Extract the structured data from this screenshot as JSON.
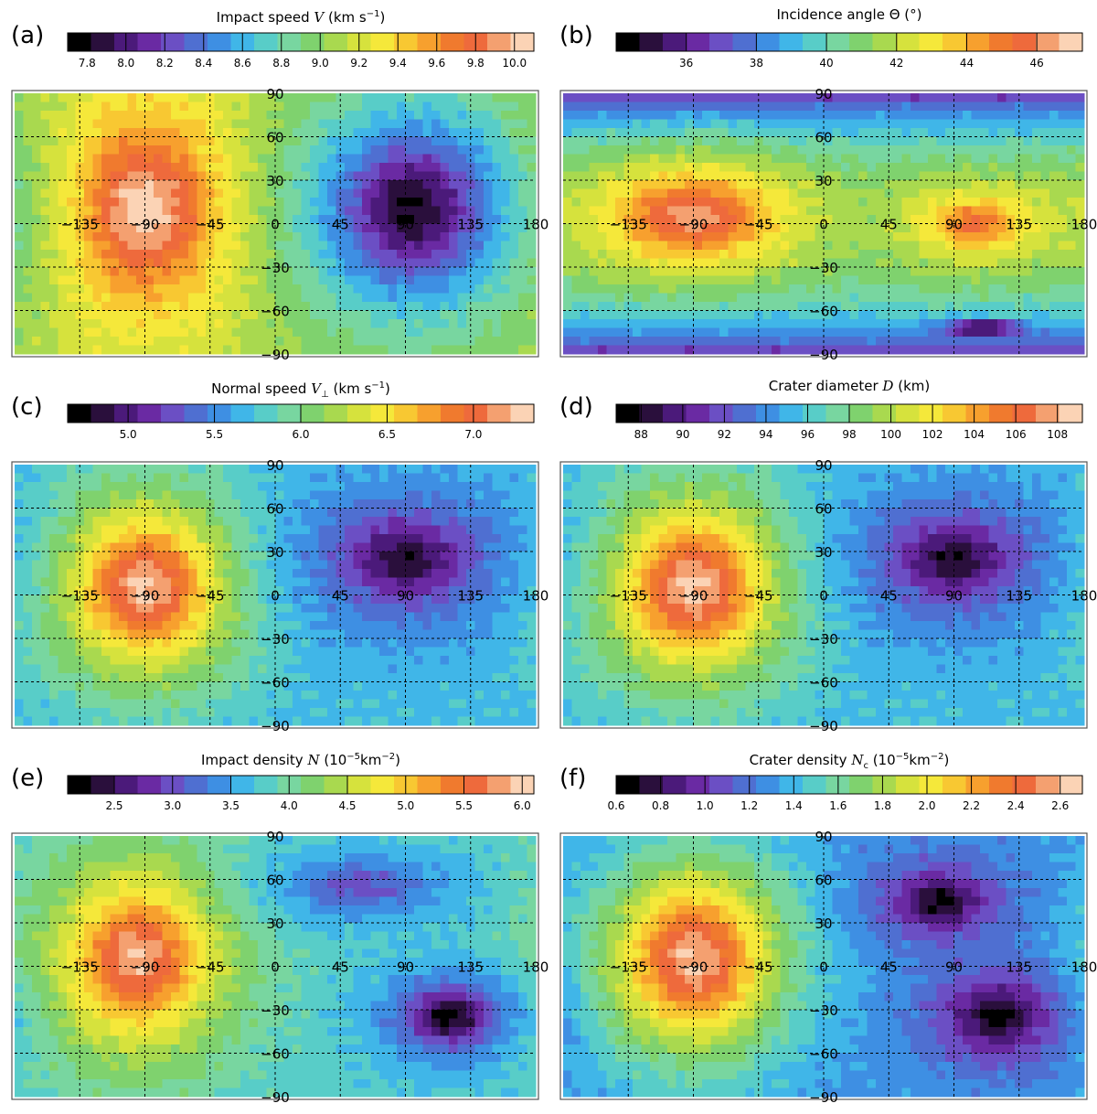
{
  "figure": {
    "panels": [
      {
        "label": "(a)",
        "cb_title_pre": "Impact speed ",
        "cb_symbol": "V",
        "cb_symbol_sub": "",
        "cb_units_pre": " (km s",
        "cb_units_sup": "−1",
        "cb_units_post": ")",
        "cb_range": [
          7.7,
          10.1
        ],
        "cb_ticks": [
          7.8,
          8.0,
          8.2,
          8.4,
          8.6,
          8.8,
          9.0,
          9.2,
          9.4,
          9.6,
          9.8,
          10.0
        ],
        "cb_tick_labels": [
          "7.8",
          "8.0",
          "8.2",
          "8.4",
          "8.6",
          "8.8",
          "9.0",
          "9.2",
          "9.4",
          "9.6",
          "9.8",
          "10.0"
        ]
      },
      {
        "label": "(b)",
        "cb_title_pre": "Incidence angle ",
        "cb_symbol": "Θ",
        "cb_symbol_sub": "",
        "cb_units_pre": " (°)",
        "cb_units_sup": "",
        "cb_units_post": "",
        "cb_range": [
          34.0,
          47.3
        ],
        "cb_ticks": [
          36,
          38,
          40,
          42,
          44,
          46
        ],
        "cb_tick_labels": [
          "36",
          "38",
          "40",
          "42",
          "44",
          "46"
        ]
      },
      {
        "label": "(c)",
        "cb_title_pre": "Normal speed ",
        "cb_symbol": "V",
        "cb_symbol_sub": "⊥",
        "cb_units_pre": " (km s",
        "cb_units_sup": "−1",
        "cb_units_post": ")",
        "cb_range": [
          4.65,
          7.35
        ],
        "cb_ticks": [
          5.0,
          5.5,
          6.0,
          6.5,
          7.0
        ],
        "cb_tick_labels": [
          "5.0",
          "5.5",
          "6.0",
          "6.5",
          "7.0"
        ]
      },
      {
        "label": "(d)",
        "cb_title_pre": "Crater diameter ",
        "cb_symbol": "D",
        "cb_symbol_sub": "",
        "cb_units_pre": " (km)",
        "cb_units_sup": "",
        "cb_units_post": "",
        "cb_range": [
          86.8,
          109.2
        ],
        "cb_ticks": [
          88,
          90,
          92,
          94,
          96,
          98,
          100,
          102,
          104,
          106,
          108
        ],
        "cb_tick_labels": [
          "88",
          "90",
          "92",
          "94",
          "96",
          "98",
          "100",
          "102",
          "104",
          "106",
          "108"
        ]
      },
      {
        "label": "(e)",
        "cb_title_pre": "Impact density ",
        "cb_symbol": "N",
        "cb_symbol_sub": "",
        "cb_units_pre": " (10",
        "cb_units_sup": "−5",
        "cb_units_post": "km",
        "cb_units_sup2": "−2",
        "cb_units_close": ")",
        "cb_range": [
          2.1,
          6.1
        ],
        "cb_ticks": [
          2.5,
          3.0,
          3.5,
          4.0,
          4.5,
          5.0,
          5.5,
          6.0
        ],
        "cb_tick_labels": [
          "2.5",
          "3.0",
          "3.5",
          "4.0",
          "4.5",
          "5.0",
          "5.5",
          "6.0"
        ]
      },
      {
        "label": "(f)",
        "cb_title_pre": "Crater density ",
        "cb_symbol": "N",
        "cb_symbol_sub": "c",
        "cb_units_pre": " (10",
        "cb_units_sup": "−5",
        "cb_units_post": "km",
        "cb_units_sup2": "−2",
        "cb_units_close": ")",
        "cb_range": [
          0.6,
          2.7
        ],
        "cb_ticks": [
          0.6,
          0.8,
          1.0,
          1.2,
          1.4,
          1.6,
          1.8,
          2.0,
          2.2,
          2.4,
          2.6
        ],
        "cb_tick_labels": [
          "0.6",
          "0.8",
          "1.0",
          "1.2",
          "1.4",
          "1.6",
          "1.8",
          "2.0",
          "2.2",
          "2.4",
          "2.6"
        ]
      }
    ],
    "lon_labels": [
      "−135",
      "−90",
      "−45",
      "0",
      "45",
      "90",
      "135",
      "180"
    ],
    "lat_labels": [
      "90",
      "60",
      "30",
      "−30",
      "−60",
      "−90"
    ],
    "colormap": [
      "#000000",
      "#2a0f3c",
      "#4b1a7a",
      "#6a2aa3",
      "#6b4fc4",
      "#4f6fd1",
      "#3e8fe3",
      "#40b6e8",
      "#58cdc8",
      "#78d6a0",
      "#7fd26e",
      "#a9d94f",
      "#d6e23d",
      "#f5e83a",
      "#f8c832",
      "#f7a02e",
      "#f07a2e",
      "#ee6a3c",
      "#f4a070",
      "#fbd3b5"
    ]
  },
  "chart_data": [
    {
      "type": "heatmap",
      "title": "Impact speed V (km s−1)",
      "x_axis": "longitude",
      "y_axis": "latitude",
      "xlim": [
        -180,
        180
      ],
      "ylim": [
        -90,
        90
      ],
      "x_ticks": [
        -135,
        -90,
        -45,
        0,
        45,
        90,
        135,
        180
      ],
      "y_ticks": [
        90,
        60,
        30,
        -30,
        -60,
        -90
      ],
      "grid": true,
      "value_range": [
        7.7,
        10.1
      ],
      "background": 9.1,
      "features": [
        {
          "lon": -90,
          "lat": 10,
          "rx": 75,
          "ry": 90,
          "value": 9.8,
          "peak": 10.05
        },
        {
          "lon": 95,
          "lat": 10,
          "rx": 95,
          "ry": 95,
          "value": 8.2,
          "peak": 7.8
        }
      ]
    },
    {
      "type": "heatmap",
      "title": "Incidence angle Θ (°)",
      "x_axis": "longitude",
      "y_axis": "latitude",
      "xlim": [
        -180,
        180
      ],
      "ylim": [
        -90,
        90
      ],
      "x_ticks": [
        -135,
        -90,
        -45,
        0,
        45,
        90,
        135,
        180
      ],
      "y_ticks": [
        90,
        60,
        30,
        -30,
        -60,
        -90
      ],
      "grid": true,
      "value_range": [
        34.0,
        47.3
      ],
      "background": 41.0,
      "pole_value": 36.5,
      "features": [
        {
          "lon": -90,
          "lat": 5,
          "rx": 85,
          "ry": 45,
          "value": 45.0,
          "peak": 46.5
        },
        {
          "lon": 105,
          "lat": 0,
          "rx": 65,
          "ry": 35,
          "value": 43.5,
          "peak": 45.5
        },
        {
          "lon": 110,
          "lat": -72,
          "rx": 30,
          "ry": 6,
          "value": 34.5,
          "peak": 34.0
        }
      ]
    },
    {
      "type": "heatmap",
      "title": "Normal speed V⊥ (km s−1)",
      "x_axis": "longitude",
      "y_axis": "latitude",
      "xlim": [
        -180,
        180
      ],
      "ylim": [
        -90,
        90
      ],
      "x_ticks": [
        -135,
        -90,
        -45,
        0,
        45,
        90,
        135,
        180
      ],
      "y_ticks": [
        90,
        60,
        30,
        -30,
        -60,
        -90
      ],
      "grid": true,
      "value_range": [
        4.65,
        7.35
      ],
      "background": 5.7,
      "features": [
        {
          "lon": -90,
          "lat": 5,
          "rx": 80,
          "ry": 80,
          "value": 6.8,
          "peak": 7.25
        },
        {
          "lon": 90,
          "lat": 25,
          "rx": 90,
          "ry": 60,
          "value": 5.2,
          "peak": 4.8
        }
      ]
    },
    {
      "type": "heatmap",
      "title": "Crater diameter D (km)",
      "x_axis": "longitude",
      "y_axis": "latitude",
      "xlim": [
        -180,
        180
      ],
      "ylim": [
        -90,
        90
      ],
      "x_ticks": [
        -135,
        -90,
        -45,
        0,
        45,
        90,
        135,
        180
      ],
      "y_ticks": [
        90,
        60,
        30,
        -30,
        -60,
        -90
      ],
      "grid": true,
      "value_range": [
        86.8,
        109.2
      ],
      "background": 95.5,
      "features": [
        {
          "lon": -90,
          "lat": 5,
          "rx": 80,
          "ry": 80,
          "value": 105.0,
          "peak": 108.5
        },
        {
          "lon": 90,
          "lat": 25,
          "rx": 90,
          "ry": 60,
          "value": 91.5,
          "peak": 88.0
        }
      ]
    },
    {
      "type": "heatmap",
      "title": "Impact density N (10−5km−2)",
      "x_axis": "longitude",
      "y_axis": "latitude",
      "xlim": [
        -180,
        180
      ],
      "ylim": [
        -90,
        90
      ],
      "x_ticks": [
        -135,
        -90,
        -45,
        0,
        45,
        90,
        135,
        180
      ],
      "y_ticks": [
        90,
        60,
        30,
        -30,
        -60,
        -90
      ],
      "grid": true,
      "value_range": [
        2.1,
        6.1
      ],
      "background": 3.8,
      "features": [
        {
          "lon": -95,
          "lat": 5,
          "rx": 80,
          "ry": 85,
          "value": 5.2,
          "peak": 5.9
        },
        {
          "lon": 120,
          "lat": -35,
          "rx": 60,
          "ry": 40,
          "value": 2.9,
          "peak": 2.2
        },
        {
          "lon": 60,
          "lat": 55,
          "rx": 80,
          "ry": 30,
          "value": 3.2,
          "peak": 3.0
        }
      ]
    },
    {
      "type": "heatmap",
      "title": "Crater density Nc (10−5km−2)",
      "x_axis": "longitude",
      "y_axis": "latitude",
      "xlim": [
        -180,
        180
      ],
      "ylim": [
        -90,
        90
      ],
      "x_ticks": [
        -135,
        -90,
        -45,
        0,
        45,
        90,
        135,
        180
      ],
      "y_ticks": [
        90,
        60,
        30,
        -30,
        -60,
        -90
      ],
      "grid": true,
      "value_range": [
        0.6,
        2.7
      ],
      "background": 1.3,
      "features": [
        {
          "lon": -90,
          "lat": 5,
          "rx": 80,
          "ry": 85,
          "value": 2.3,
          "peak": 2.6
        },
        {
          "lon": 80,
          "lat": 45,
          "rx": 55,
          "ry": 35,
          "value": 0.9,
          "peak": 0.65
        },
        {
          "lon": 120,
          "lat": -35,
          "rx": 55,
          "ry": 40,
          "value": 0.85,
          "peak": 0.65
        }
      ]
    }
  ]
}
